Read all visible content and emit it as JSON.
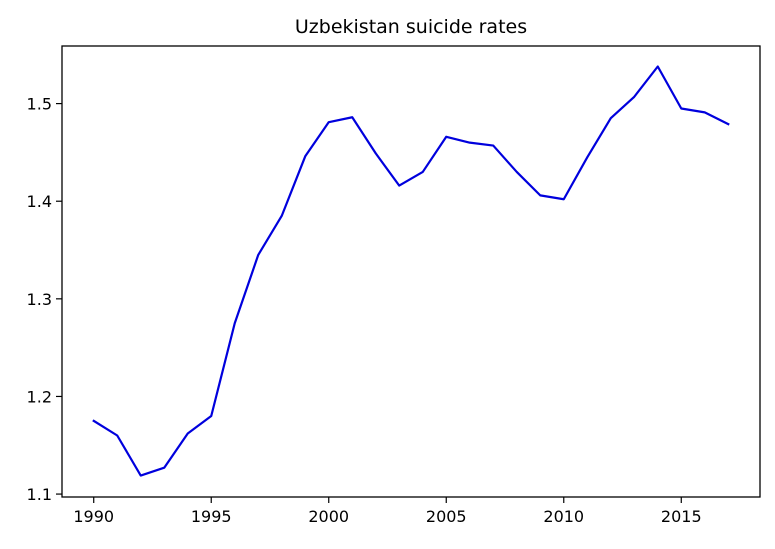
{
  "chart_data": {
    "type": "line",
    "title": "Uzbekistan suicide rates",
    "xlabel": "",
    "ylabel": "",
    "xlim": [
      1988.65,
      2018.35
    ],
    "ylim": [
      1.097,
      1.559
    ],
    "xticks": [
      1990,
      1995,
      2000,
      2005,
      2010,
      2015
    ],
    "yticks": [
      1.1,
      1.2,
      1.3,
      1.4,
      1.5
    ],
    "ytick_labels": [
      "1.1",
      "1.2",
      "1.3",
      "1.4",
      "1.5"
    ],
    "grid": false,
    "color": "#0000dd",
    "series": [
      {
        "x": [
          1990,
          1991,
          1992,
          1993,
          1994,
          1995,
          1996,
          1997,
          1998,
          1999,
          2000,
          2001,
          2002,
          2003,
          2004,
          2005,
          2006,
          2007,
          2008,
          2009,
          2010,
          2011,
          2012,
          2013,
          2014,
          2015,
          2016,
          2017
        ],
        "y": [
          1.175,
          1.16,
          1.119,
          1.127,
          1.162,
          1.18,
          1.275,
          1.345,
          1.385,
          1.446,
          1.481,
          1.486,
          1.449,
          1.416,
          1.43,
          1.466,
          1.46,
          1.457,
          1.43,
          1.406,
          1.402,
          1.445,
          1.485,
          1.507,
          1.538,
          1.495,
          1.491,
          1.479
        ]
      }
    ]
  }
}
